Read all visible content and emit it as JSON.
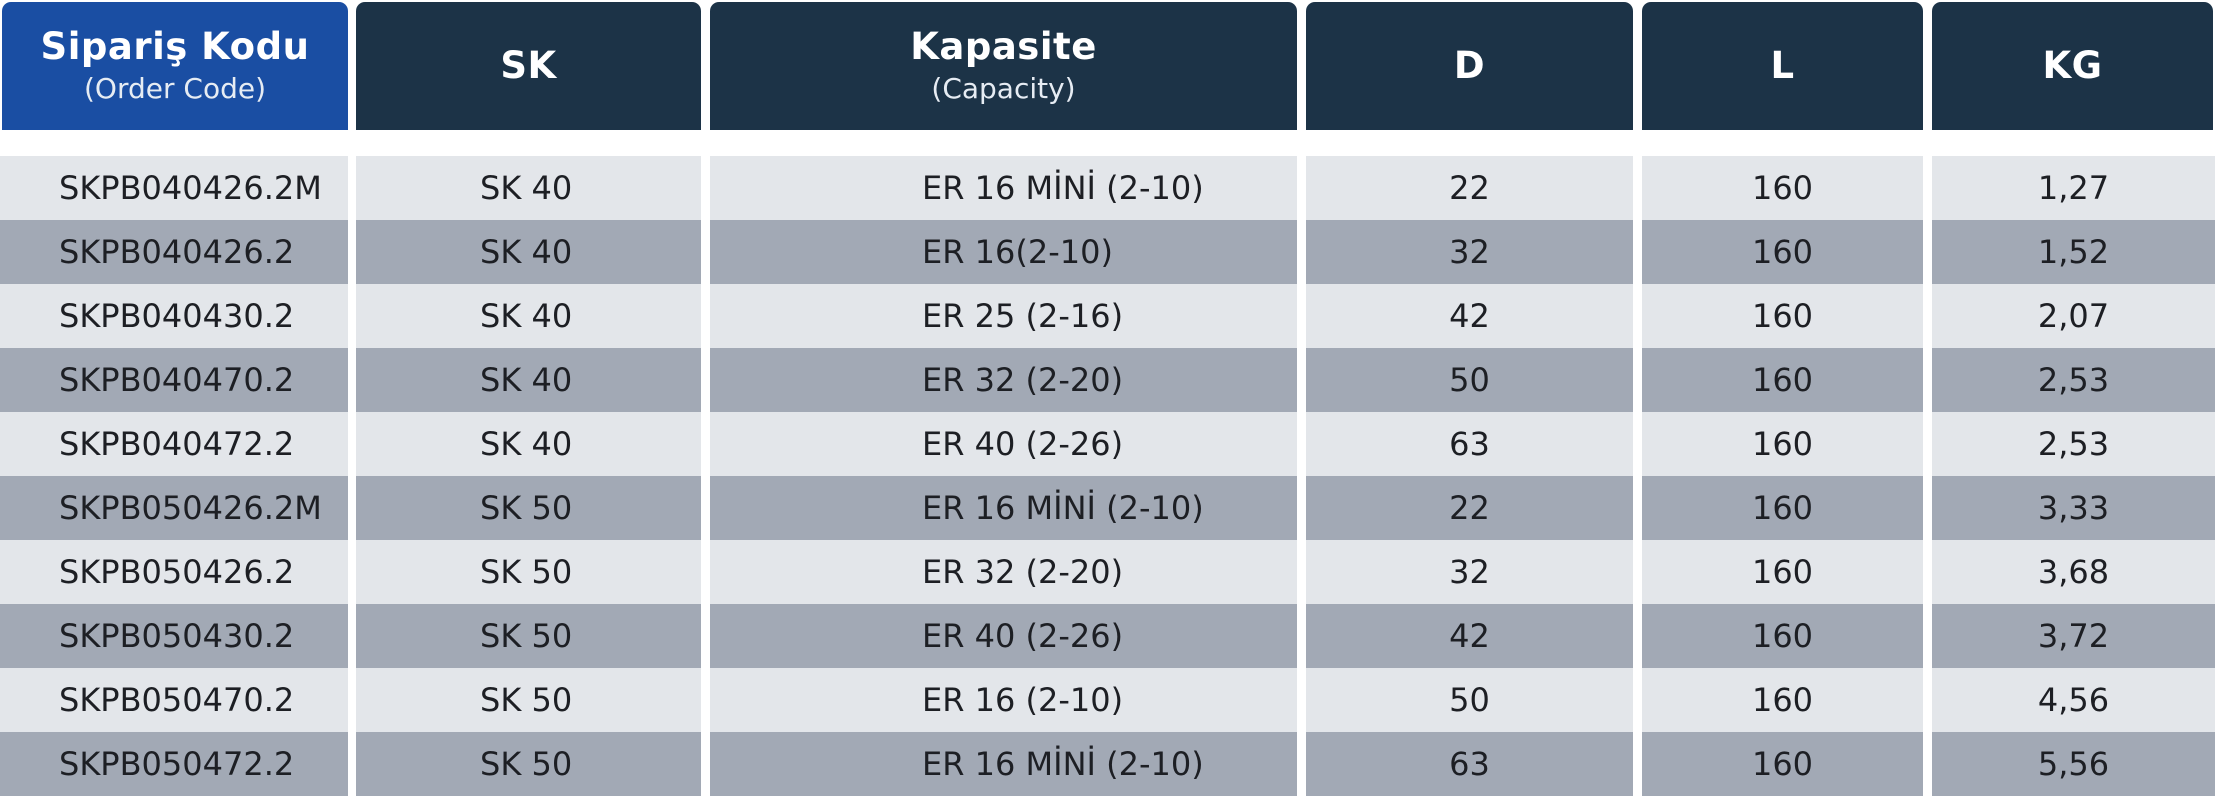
{
  "columns": [
    {
      "label": "Sipariş Kodu",
      "sublabel": "(Order Code)"
    },
    {
      "label": "SK",
      "sublabel": ""
    },
    {
      "label": "Kapasite",
      "sublabel": "(Capacity)"
    },
    {
      "label": "D",
      "sublabel": ""
    },
    {
      "label": "L",
      "sublabel": ""
    },
    {
      "label": "KG",
      "sublabel": ""
    }
  ],
  "rows": [
    [
      "SKPB040426.2M",
      "SK 40",
      "ER 16 MİNİ (2-10)",
      "22",
      "160",
      "1,27"
    ],
    [
      "SKPB040426.2",
      "SK 40",
      "ER 16(2-10)",
      "32",
      "160",
      "1,52"
    ],
    [
      "SKPB040430.2",
      "SK 40",
      "ER 25 (2-16)",
      "42",
      "160",
      "2,07"
    ],
    [
      "SKPB040470.2",
      "SK 40",
      "ER 32 (2-20)",
      "50",
      "160",
      "2,53"
    ],
    [
      "SKPB040472.2",
      "SK 40",
      "ER 40 (2-26)",
      "63",
      "160",
      "2,53"
    ],
    [
      "SKPB050426.2M",
      "SK 50",
      "ER 16 MİNİ (2-10)",
      "22",
      "160",
      "3,33"
    ],
    [
      "SKPB050426.2",
      "SK 50",
      "ER 32 (2-20)",
      "32",
      "160",
      "3,68"
    ],
    [
      "SKPB050430.2",
      "SK 50",
      "ER 40 (2-26)",
      "42",
      "160",
      "3,72"
    ],
    [
      "SKPB050470.2",
      "SK 50",
      "ER 16 (2-10)",
      "50",
      "160",
      "4,56"
    ],
    [
      "SKPB050472.2",
      "SK 50",
      "ER 16 MİNİ (2-10)",
      "63",
      "160",
      "5,56"
    ]
  ],
  "colors": {
    "header_first": "#1a4ea3",
    "header": "#1c3347",
    "row_light": "#e3e6ea",
    "row_dark": "#a2a9b5"
  }
}
